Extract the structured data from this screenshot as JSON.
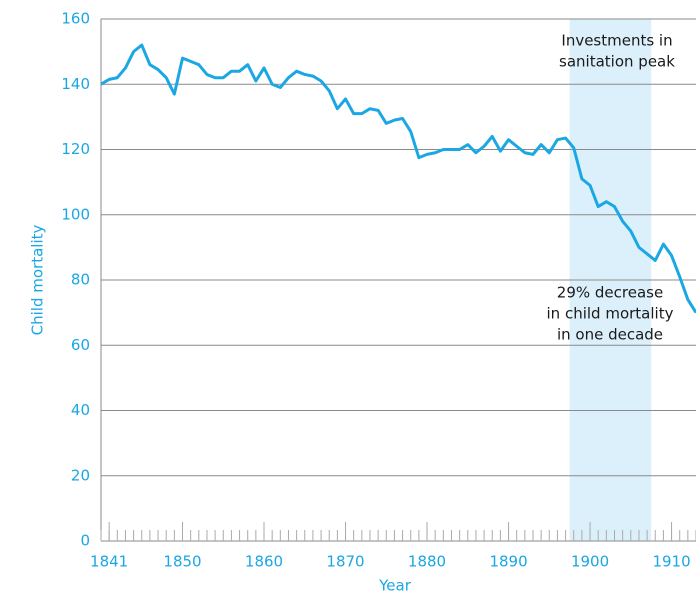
{
  "chart_data": {
    "type": "line",
    "xlabel": "Year",
    "ylabel": "Child mortality",
    "x": [
      1840,
      1841,
      1842,
      1843,
      1844,
      1845,
      1846,
      1847,
      1848,
      1849,
      1850,
      1851,
      1852,
      1853,
      1854,
      1855,
      1856,
      1857,
      1858,
      1859,
      1860,
      1861,
      1862,
      1863,
      1864,
      1865,
      1866,
      1867,
      1868,
      1869,
      1870,
      1871,
      1872,
      1873,
      1874,
      1875,
      1876,
      1877,
      1878,
      1879,
      1880,
      1881,
      1882,
      1883,
      1884,
      1885,
      1886,
      1887,
      1888,
      1889,
      1890,
      1891,
      1892,
      1893,
      1894,
      1895,
      1896,
      1897,
      1898,
      1899,
      1900,
      1901,
      1902,
      1903,
      1904,
      1905,
      1906,
      1907,
      1908,
      1909,
      1910,
      1911,
      1912,
      1913
    ],
    "series": [
      {
        "name": "Child mortality",
        "color": "#1aa7e4",
        "values": [
          140,
          141.5,
          142,
          145,
          150,
          152,
          146,
          144.5,
          142,
          137,
          148,
          147,
          146,
          143,
          142,
          142,
          144,
          144,
          146,
          141,
          145,
          140,
          139,
          142,
          144,
          143,
          142.5,
          141,
          138,
          132.5,
          135.5,
          131,
          131,
          132.5,
          132,
          128,
          129,
          129.5,
          125.5,
          117.5,
          118.5,
          119,
          120,
          120,
          120,
          121.5,
          119,
          121,
          124,
          119.5,
          123,
          121,
          119,
          118.5,
          121.5,
          119,
          123,
          123.5,
          120.5,
          111,
          109,
          102.5,
          104,
          102.5,
          98,
          95,
          90,
          88,
          86,
          91,
          87.5,
          81,
          74,
          70
        ]
      }
    ],
    "xlim": [
      1840,
      1913
    ],
    "xticks": [
      1841,
      1850,
      1860,
      1870,
      1880,
      1890,
      1900,
      1910
    ],
    "ylim": [
      0,
      160
    ],
    "yticks": [
      0,
      20,
      40,
      60,
      80,
      100,
      120,
      140,
      160
    ],
    "grid": true,
    "highlight": [
      1897.5,
      1907.5
    ],
    "annotations": [
      {
        "lines": [
          "Investments in",
          "sanitation peak"
        ]
      },
      {
        "lines": [
          "29% decrease",
          "in child mortality",
          "in one decade"
        ]
      }
    ]
  }
}
